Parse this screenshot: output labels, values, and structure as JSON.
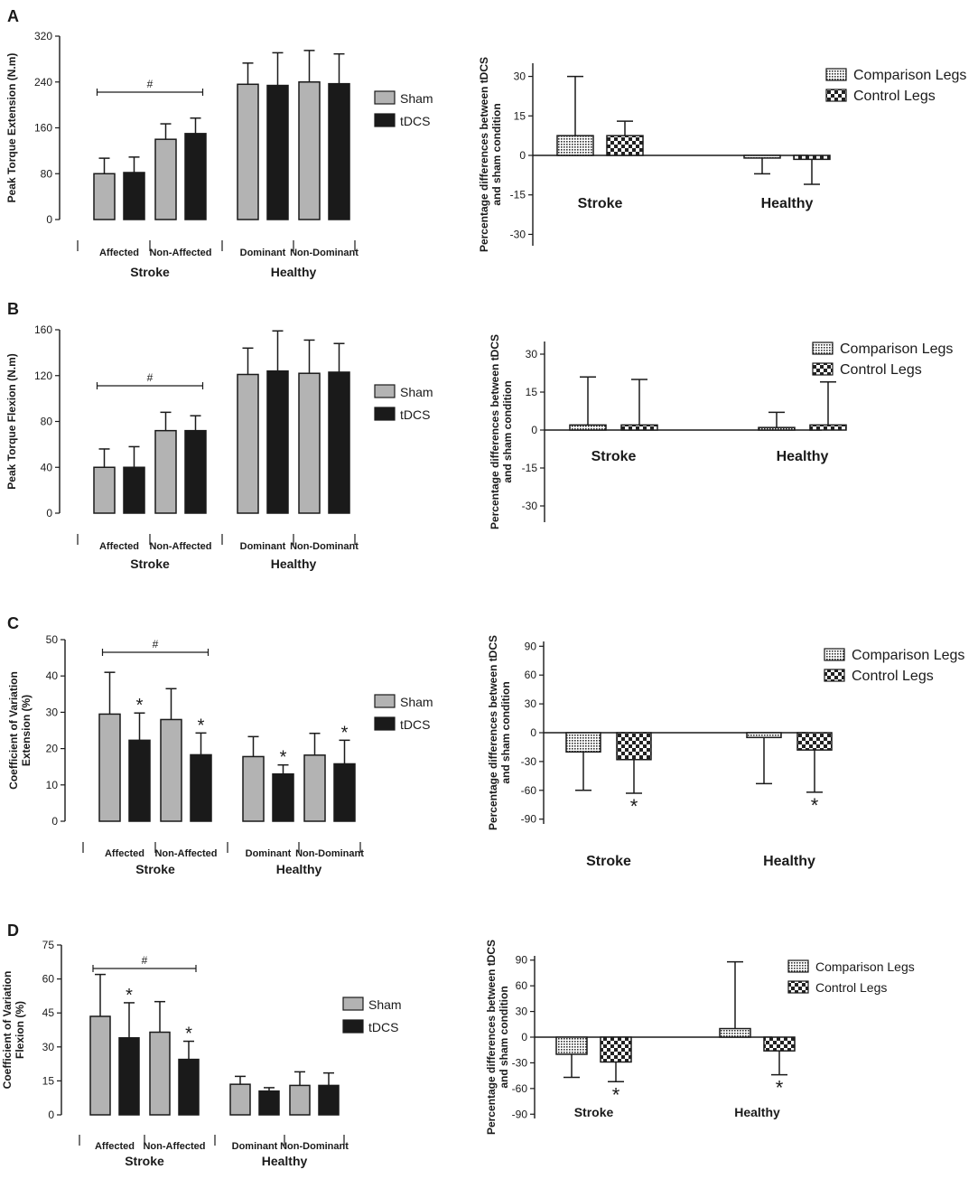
{
  "figure": {
    "panels": [
      "A",
      "B",
      "C",
      "D"
    ]
  },
  "chart_data": [
    {
      "id": "A-left",
      "panel": "A",
      "type": "bar",
      "ylabel": "Peak Torque Extension (N.m)",
      "ylim": [
        0,
        320
      ],
      "yticks": [
        0,
        80,
        160,
        240,
        320
      ],
      "groups": [
        "Stroke",
        "Healthy"
      ],
      "categories": [
        "Affected",
        "Non-Affected",
        "Dominant",
        "Non-Dominant"
      ],
      "series": [
        {
          "name": "Sham",
          "color": "#b3b3b3",
          "values": [
            80,
            140,
            236,
            240
          ],
          "errors": [
            27,
            27,
            37,
            55
          ]
        },
        {
          "name": "tDCS",
          "color": "#1a1a1a",
          "values": [
            82,
            150,
            234,
            237
          ],
          "errors": [
            27,
            27,
            57,
            52
          ]
        }
      ],
      "bracket": {
        "label": "#",
        "from": [
          0,
          0
        ],
        "to": [
          1,
          1
        ]
      },
      "stars": []
    },
    {
      "id": "A-right",
      "panel": "A",
      "type": "bar",
      "ylabel": "Percentage differences between tDCS and sham condition",
      "ylim": [
        -35,
        35
      ],
      "yticks": [
        -30,
        -15,
        0,
        15,
        30
      ],
      "categories": [
        "Stroke",
        "Healthy"
      ],
      "series": [
        {
          "name": "Comparison Legs",
          "pattern": "fine",
          "values": [
            7.5,
            -1
          ],
          "errors": [
            22.5,
            6
          ]
        },
        {
          "name": "Control Legs",
          "pattern": "check",
          "values": [
            7.5,
            -1.5
          ],
          "errors": [
            5.5,
            9.5
          ]
        }
      ],
      "stars": []
    },
    {
      "id": "B-left",
      "panel": "B",
      "type": "bar",
      "ylabel": "Peak Torque Flexion (N.m)",
      "ylim": [
        0,
        160
      ],
      "yticks": [
        0,
        40,
        80,
        120,
        160
      ],
      "groups": [
        "Stroke",
        "Healthy"
      ],
      "categories": [
        "Affected",
        "Non-Affected",
        "Dominant",
        "Non-Dominant"
      ],
      "series": [
        {
          "name": "Sham",
          "color": "#b3b3b3",
          "values": [
            40,
            72,
            121,
            122
          ],
          "errors": [
            16,
            16,
            23,
            29
          ]
        },
        {
          "name": "tDCS",
          "color": "#1a1a1a",
          "values": [
            40,
            72,
            124,
            123
          ],
          "errors": [
            18,
            13,
            35,
            25
          ]
        }
      ],
      "bracket": {
        "label": "#",
        "from": [
          0,
          0
        ],
        "to": [
          1,
          1
        ]
      },
      "stars": []
    },
    {
      "id": "B-right",
      "panel": "B",
      "type": "bar",
      "ylabel": "Percentage differences between tDCS and sham condition",
      "ylim": [
        -35,
        35
      ],
      "yticks": [
        -30,
        -15,
        0,
        15,
        30
      ],
      "categories": [
        "Stroke",
        "Healthy"
      ],
      "series": [
        {
          "name": "Comparison Legs",
          "pattern": "fine",
          "values": [
            2,
            1
          ],
          "errors": [
            19,
            6
          ]
        },
        {
          "name": "Control Legs",
          "pattern": "check",
          "values": [
            2,
            2
          ],
          "errors": [
            18,
            17
          ]
        }
      ],
      "stars": []
    },
    {
      "id": "C-left",
      "panel": "C",
      "type": "bar",
      "ylabel": "Coefficient of Variation Extension (%)",
      "ylim": [
        0,
        50
      ],
      "yticks": [
        0,
        10,
        20,
        30,
        40,
        50
      ],
      "groups": [
        "Stroke",
        "Healthy"
      ],
      "categories": [
        "Affected",
        "Non-Affected",
        "Dominant",
        "Non-Dominant"
      ],
      "series": [
        {
          "name": "Sham",
          "color": "#b3b3b3",
          "values": [
            29.5,
            28,
            17.8,
            18.2
          ],
          "errors": [
            11.5,
            8.5,
            5.5,
            6
          ]
        },
        {
          "name": "tDCS",
          "color": "#1a1a1a",
          "values": [
            22.3,
            18.3,
            13,
            15.8
          ],
          "errors": [
            7.5,
            6,
            2.5,
            6.5
          ]
        }
      ],
      "bracket": {
        "label": "#",
        "from": [
          0,
          0
        ],
        "to": [
          1,
          1
        ]
      },
      "stars": [
        [
          1,
          0
        ],
        [
          1,
          1
        ],
        [
          1,
          2
        ],
        [
          1,
          3
        ]
      ]
    },
    {
      "id": "C-right",
      "panel": "C",
      "type": "bar",
      "ylabel": "Percentage differences between tDCS and sham condition",
      "ylim": [
        -95,
        95
      ],
      "yticks": [
        -90,
        -60,
        -30,
        0,
        30,
        60,
        90
      ],
      "categories": [
        "Stroke",
        "Healthy"
      ],
      "series": [
        {
          "name": "Comparison Legs",
          "pattern": "fine",
          "values": [
            -20,
            -5
          ],
          "errors": [
            40,
            48
          ]
        },
        {
          "name": "Control Legs",
          "pattern": "check",
          "values": [
            -28,
            -18
          ],
          "errors": [
            35,
            44
          ]
        }
      ],
      "stars": [
        [
          1,
          0
        ],
        [
          1,
          1
        ]
      ]
    },
    {
      "id": "D-left",
      "panel": "D",
      "type": "bar",
      "ylabel": "Coefficient of Variation Flexion (%)",
      "ylim": [
        0,
        75
      ],
      "yticks": [
        0,
        15,
        30,
        45,
        60,
        75
      ],
      "groups": [
        "Stroke",
        "Healthy"
      ],
      "categories": [
        "Affected",
        "Non-Affected",
        "Dominant",
        "Non-Dominant"
      ],
      "series": [
        {
          "name": "Sham",
          "color": "#b3b3b3",
          "values": [
            43.5,
            36.5,
            13.5,
            13
          ],
          "errors": [
            18.5,
            13.5,
            3.5,
            6
          ]
        },
        {
          "name": "tDCS",
          "color": "#1a1a1a",
          "values": [
            34,
            24.5,
            10.5,
            13
          ],
          "errors": [
            15.5,
            8,
            1.5,
            5.5
          ]
        }
      ],
      "bracket": {
        "label": "#",
        "from": [
          0,
          0
        ],
        "to": [
          1,
          1
        ]
      },
      "stars": [
        [
          1,
          0
        ],
        [
          1,
          1
        ]
      ]
    },
    {
      "id": "D-right",
      "panel": "D",
      "type": "bar",
      "ylabel": "Percentage differences between tDCS and sham condition",
      "ylim": [
        -95,
        95
      ],
      "yticks": [
        -90,
        -60,
        -30,
        0,
        30,
        60,
        90
      ],
      "categories": [
        "Stroke",
        "Healthy"
      ],
      "series": [
        {
          "name": "Comparison Legs",
          "pattern": "fine",
          "values": [
            -20,
            10
          ],
          "errors": [
            27,
            78
          ]
        },
        {
          "name": "Control Legs",
          "pattern": "check",
          "values": [
            -29,
            -16
          ],
          "errors": [
            23,
            28
          ]
        }
      ],
      "stars": [
        [
          1,
          0
        ],
        [
          1,
          1
        ]
      ]
    }
  ]
}
